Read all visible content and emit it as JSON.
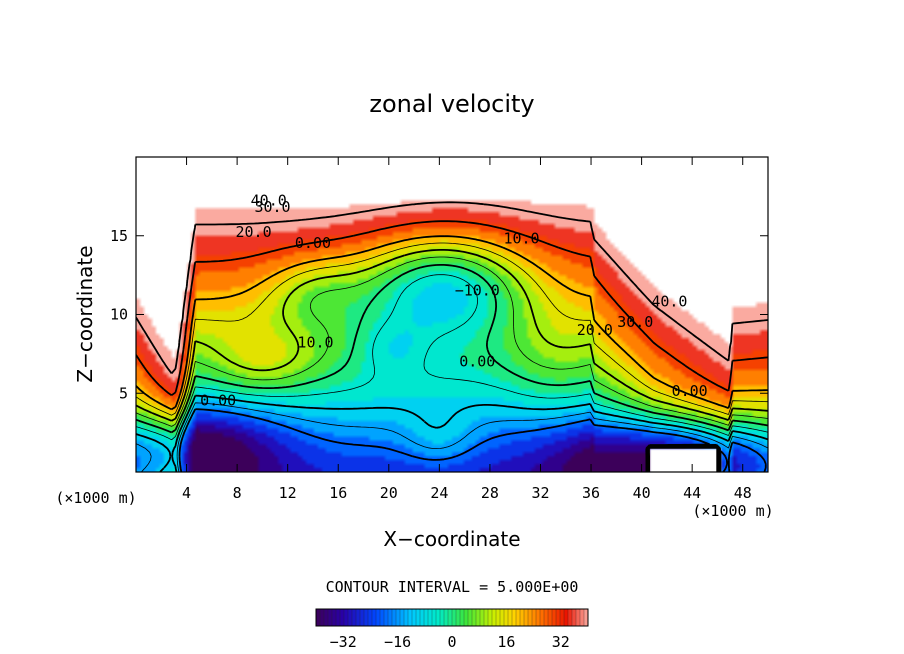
{
  "chart_data": {
    "type": "contour",
    "title": "zonal velocity",
    "xlabel": "X−coordinate",
    "ylabel": "Z−coordinate",
    "x_unit": "(×1000 m)",
    "xlim": [
      0,
      50
    ],
    "ylim": [
      0,
      20
    ],
    "x_ticks": [
      4,
      8,
      12,
      16,
      20,
      24,
      28,
      32,
      36,
      40,
      44,
      48
    ],
    "y_ticks": [
      5,
      10,
      15
    ],
    "contour_interval_text": "CONTOUR INTERVAL = 5.000E+00",
    "contour_labels": [
      {
        "text": "40.0",
        "x": 10.5,
        "y": 17.2
      },
      {
        "text": "30.0",
        "x": 10.8,
        "y": 16.8
      },
      {
        "text": "20.0",
        "x": 9.3,
        "y": 15.2
      },
      {
        "text": "0.00",
        "x": 14.0,
        "y": 14.5
      },
      {
        "text": "10.0",
        "x": 30.5,
        "y": 14.8
      },
      {
        "text": "−10.0",
        "x": 27.0,
        "y": 11.5
      },
      {
        "text": "10.0",
        "x": 14.2,
        "y": 8.2
      },
      {
        "text": "0.00",
        "x": 27.0,
        "y": 7.0
      },
      {
        "text": "40.0",
        "x": 42.2,
        "y": 10.8
      },
      {
        "text": "30.0",
        "x": 39.5,
        "y": 9.5
      },
      {
        "text": "20.0",
        "x": 36.3,
        "y": 9.0
      },
      {
        "text": "0.00",
        "x": 43.8,
        "y": 5.1
      },
      {
        "text": "0.00",
        "x": 6.5,
        "y": 4.5
      }
    ],
    "colorbar": {
      "range": [
        -40,
        40
      ],
      "ticks": [
        {
          "value": -32,
          "label": "−32"
        },
        {
          "value": -16,
          "label": "−16"
        },
        {
          "value": 0,
          "label": "0"
        },
        {
          "value": 16,
          "label": "16"
        },
        {
          "value": 32,
          "label": "32"
        }
      ]
    }
  }
}
